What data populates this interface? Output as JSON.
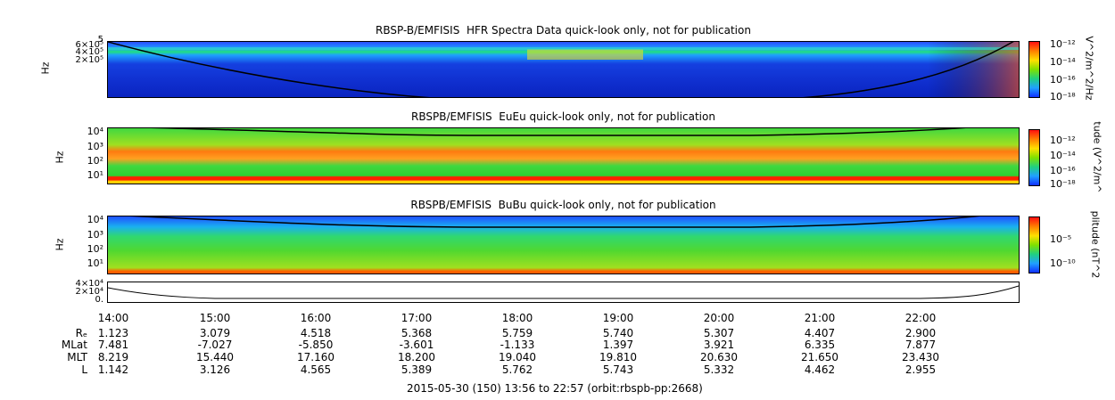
{
  "colors": {
    "axis": "#000000",
    "background": "#ffffff"
  },
  "chart_data": [
    {
      "type": "heatmap",
      "title": "RBSP-B/EMFISIS  HFR Spectra Data quick-look only, not for publication",
      "ylabel": "Hz",
      "ytick_labels": [
        "6×10⁵",
        "5",
        "4×10⁵",
        "2×10⁵"
      ],
      "colorbar_label": "V^2/m^2/Hz",
      "colorbar_ticks": [
        "10⁻¹²",
        "10⁻¹⁴",
        "10⁻¹⁶",
        "10⁻¹⁸"
      ],
      "yscale": "log",
      "colorscale": "rainbow"
    },
    {
      "type": "heatmap",
      "title": "RBSPB/EMFISIS  EuEu quick-look only, not for publication",
      "ylabel": "Hz",
      "ytick_labels": [
        "10⁴",
        "10³",
        "10²",
        "10¹"
      ],
      "colorbar_label": "tude (V^2/m^",
      "colorbar_ticks": [
        "10⁻¹²",
        "10⁻¹⁴",
        "10⁻¹⁶",
        "10⁻¹⁸"
      ],
      "yscale": "log",
      "colorscale": "rainbow"
    },
    {
      "type": "heatmap",
      "title": "RBSPB/EMFISIS  BuBu quick-look only, not for publication",
      "ylabel": "Hz",
      "ytick_labels": [
        "10⁴",
        "10³",
        "10²",
        "10¹"
      ],
      "colorbar_label": "plitude (nT^2",
      "colorbar_ticks": [
        "10⁻⁵",
        "10⁻¹⁰"
      ],
      "yscale": "log",
      "colorscale": "rainbow"
    },
    {
      "type": "line",
      "title": "",
      "ytick_labels": [
        "4×10⁴",
        "2×10⁴",
        "0."
      ]
    }
  ],
  "xaxis": {
    "ticks": [
      "14:00",
      "15:00",
      "16:00",
      "17:00",
      "18:00",
      "19:00",
      "20:00",
      "21:00",
      "22:00"
    ]
  },
  "ephemeris": {
    "labels": [
      "Rₑ",
      "MLat",
      "MLT",
      "L"
    ],
    "rows": [
      [
        "1.123",
        "3.079",
        "4.518",
        "5.368",
        "5.759",
        "5.740",
        "5.307",
        "4.407",
        "2.900"
      ],
      [
        "7.481",
        "-7.027",
        "-5.850",
        "-3.601",
        "-1.133",
        "1.397",
        "3.921",
        "6.335",
        "7.877"
      ],
      [
        "8.219",
        "15.440",
        "17.160",
        "18.200",
        "19.040",
        "19.810",
        "20.630",
        "21.650",
        "23.430"
      ],
      [
        "1.142",
        "3.126",
        "4.565",
        "5.389",
        "5.762",
        "5.743",
        "5.332",
        "4.462",
        "2.955"
      ]
    ]
  },
  "footer": "2015-05-30 (150) 13:56 to 22:57 (orbit:rbspb-pp:2668)"
}
